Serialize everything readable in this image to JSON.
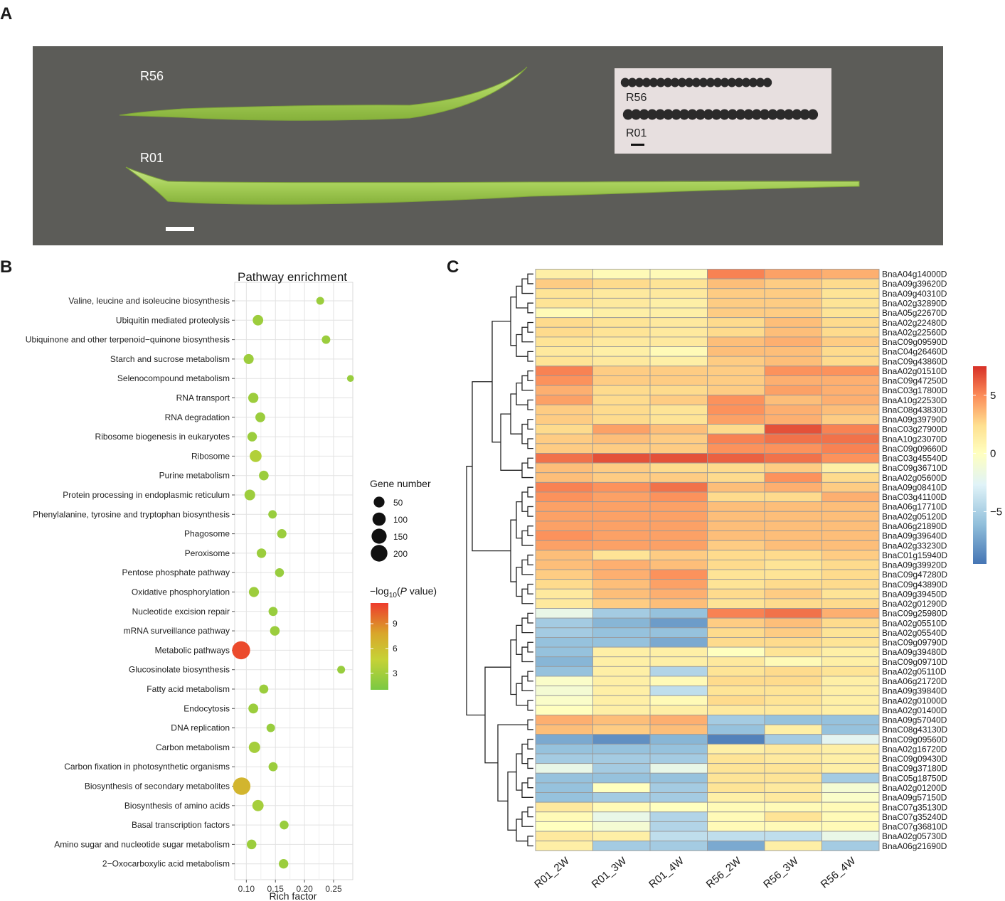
{
  "panels": {
    "a": "A",
    "b": "B",
    "c": "C"
  },
  "photo": {
    "pod_labels": [
      "R56",
      "R01"
    ],
    "inset_labels": [
      "R56",
      "R01"
    ],
    "colors": {
      "background": "#5c5c58",
      "pod": "#a6cf58",
      "inset_bg": "#e7dfdf",
      "seed": "#2b2a2a"
    }
  },
  "chart_data": [
    {
      "type": "scatter",
      "title": "Pathway enrichment",
      "xlabel": "Rich factor",
      "ylabel": "",
      "xlim": [
        0.08,
        0.283
      ],
      "xticks": [
        0.1,
        0.15,
        0.2,
        0.25
      ],
      "xtick_labels": [
        "0.10",
        "0.15",
        "0.20",
        "0.25"
      ],
      "categories": [
        "Valine, leucine and isoleucine biosynthesis",
        "Ubiquitin mediated proteolysis",
        "Ubiquinone and other terpenoid−quinone biosynthesis",
        "Starch and sucrose metabolism",
        "Selenocompound metabolism",
        "RNA transport",
        "RNA degradation",
        "Ribosome biogenesis in eukaryotes",
        "Ribosome",
        "Purine metabolism",
        "Protein processing in endoplasmic reticulum",
        "Phenylalanine, tyrosine and tryptophan biosynthesis",
        "Phagosome",
        "Peroxisome",
        "Pentose phosphate pathway",
        "Oxidative phosphorylation",
        "Nucleotide excision repair",
        "mRNA surveillance pathway",
        "Metabolic pathways",
        "Glucosinolate biosynthesis",
        "Fatty acid metabolism",
        "Endocytosis",
        "DNA replication",
        "Carbon metabolism",
        "Carbon fixation in photosynthetic organisms",
        "Biosynthesis of secondary metabolites",
        "Biosynthesis of amino acids",
        "Basal transcription factors",
        "Amino sugar and nucleotide sugar metabolism",
        "2−Oxocarboxylic acid metabolism"
      ],
      "rich_factor": [
        0.227,
        0.12,
        0.237,
        0.104,
        0.279,
        0.112,
        0.124,
        0.11,
        0.116,
        0.13,
        0.106,
        0.145,
        0.161,
        0.126,
        0.157,
        0.113,
        0.146,
        0.149,
        0.091,
        0.263,
        0.13,
        0.112,
        0.142,
        0.114,
        0.146,
        0.092,
        0.12,
        0.165,
        0.109,
        0.164
      ],
      "gene_number": [
        12,
        45,
        18,
        38,
        5,
        40,
        35,
        30,
        70,
        32,
        48,
        18,
        28,
        30,
        22,
        38,
        25,
        32,
        250,
        12,
        25,
        35,
        18,
        60,
        25,
        230,
        58,
        22,
        32,
        30
      ],
      "neg_log10_p": [
        2.5,
        2.6,
        2.5,
        2.6,
        2.4,
        2.6,
        2.5,
        2.5,
        3.6,
        2.5,
        2.6,
        2.4,
        2.5,
        2.5,
        2.4,
        2.6,
        2.4,
        2.5,
        11.0,
        2.4,
        2.5,
        2.5,
        2.4,
        3.0,
        2.5,
        6.8,
        3.0,
        2.4,
        2.5,
        2.5
      ],
      "size_legend": {
        "title": "Gene number",
        "values": [
          50,
          100,
          150,
          200
        ],
        "labels": [
          "50",
          "100",
          "150",
          "200"
        ]
      },
      "color_legend": {
        "title": "−log10(P value)",
        "ticks": [
          3,
          6,
          9
        ],
        "labels": [
          "3",
          "6",
          "9"
        ],
        "range": [
          1,
          11.5
        ],
        "colors": [
          "#7ac943",
          "#c6d236",
          "#d9a62a",
          "#ee3b2c"
        ]
      }
    },
    {
      "type": "heatmap",
      "columns": [
        "R01_2W",
        "R01_3W",
        "R01_4W",
        "R56_2W",
        "R56_3W",
        "R56_4W"
      ],
      "rows": [
        "BnaA04g14000D",
        "BnaA09g39620D",
        "BnaA09g40310D",
        "BnaA02g32890D",
        "BnaA05g22670D",
        "BnaA02g22480D",
        "BnaA02g22560D",
        "BnaC09g09590D",
        "BnaC04g26460D",
        "BnaC09g43860D",
        "BnaA02g01510D",
        "BnaC09g47250D",
        "BnaC03g17800D",
        "BnaA10g22530D",
        "BnaC08g43830D",
        "BnaA09g39790D",
        "BnaC03g27900D",
        "BnaA10g23070D",
        "BnaC09g09660D",
        "BnaC03g45540D",
        "BnaC09g36710D",
        "BnaA02g05600D",
        "BnaA09g08410D",
        "BnaC03g41100D",
        "BnaA06g17710D",
        "BnaA02g05120D",
        "BnaA06g21890D",
        "BnaA09g39640D",
        "BnaA02g33230D",
        "BnaC01g15940D",
        "BnaA09g39920D",
        "BnaC09g47280D",
        "BnaC09g43890D",
        "BnaA09g39450D",
        "BnaA02g01290D",
        "BnaC09g25980D",
        "BnaA02g05510D",
        "BnaA02g05540D",
        "BnaC09g09790D",
        "BnaA09g39480D",
        "BnaC09g09710D",
        "BnaA02g05110D",
        "BnaA06g21720D",
        "BnaA09g39840D",
        "BnaA02g01000D",
        "BnaA02g01400D",
        "BnaA09g57040D",
        "BnaC08g43130D",
        "BnaC09g09560D",
        "BnaA02g16720D",
        "BnaC09g09430D",
        "BnaC09g37180D",
        "BnaC05g18750D",
        "BnaA02g01200D",
        "BnaA09g57150D",
        "BnaC07g35130D",
        "BnaC07g35240D",
        "BnaC07g36810D",
        "BnaA02g05730D",
        "BnaA06g21690D"
      ],
      "values": [
        [
          0.5,
          -0.5,
          -0.5,
          5.0,
          4.0,
          3.5
        ],
        [
          2.5,
          2.0,
          1.5,
          3.0,
          2.5,
          2.0
        ],
        [
          1.5,
          1.0,
          1.0,
          2.5,
          2.5,
          1.5
        ],
        [
          1.5,
          1.0,
          0.5,
          2.5,
          2.5,
          1.5
        ],
        [
          -0.5,
          0.5,
          0.5,
          2.5,
          2.5,
          1.5
        ],
        [
          2.0,
          1.5,
          1.0,
          2.0,
          3.0,
          2.0
        ],
        [
          2.0,
          1.5,
          1.0,
          2.0,
          3.0,
          2.0
        ],
        [
          1.5,
          1.0,
          1.0,
          3.0,
          3.5,
          2.5
        ],
        [
          1.0,
          0.5,
          -0.5,
          3.0,
          3.0,
          2.0
        ],
        [
          1.5,
          1.0,
          0.5,
          2.5,
          3.0,
          2.0
        ],
        [
          5.0,
          2.5,
          2.5,
          2.5,
          4.5,
          4.5
        ],
        [
          4.5,
          2.5,
          2.5,
          2.5,
          3.5,
          3.5
        ],
        [
          3.5,
          2.0,
          2.0,
          2.5,
          4.0,
          3.5
        ],
        [
          4.0,
          2.0,
          2.5,
          4.5,
          3.0,
          3.5
        ],
        [
          2.5,
          2.0,
          1.5,
          4.5,
          3.5,
          3.0
        ],
        [
          2.5,
          2.0,
          1.5,
          4.0,
          3.5,
          2.5
        ],
        [
          2.0,
          4.0,
          3.0,
          2.0,
          6.5,
          5.0
        ],
        [
          2.5,
          3.0,
          2.5,
          5.0,
          5.5,
          5.5
        ],
        [
          2.5,
          2.5,
          2.5,
          4.5,
          4.5,
          5.0
        ],
        [
          5.5,
          6.5,
          6.5,
          6.0,
          5.5,
          4.5
        ],
        [
          3.0,
          2.5,
          2.0,
          2.0,
          2.5,
          0.5
        ],
        [
          3.0,
          2.5,
          2.5,
          2.0,
          4.5,
          2.0
        ],
        [
          5.0,
          4.5,
          5.5,
          3.0,
          3.5,
          2.5
        ],
        [
          4.5,
          4.0,
          4.5,
          2.0,
          2.0,
          3.5
        ],
        [
          4.0,
          4.0,
          4.0,
          3.0,
          3.0,
          3.0
        ],
        [
          4.0,
          4.0,
          4.0,
          3.0,
          3.0,
          3.0
        ],
        [
          4.0,
          4.0,
          4.0,
          3.0,
          3.0,
          3.0
        ],
        [
          4.5,
          4.0,
          4.0,
          3.0,
          3.0,
          3.0
        ],
        [
          4.0,
          4.0,
          4.0,
          2.5,
          3.0,
          3.0
        ],
        [
          3.0,
          1.5,
          2.5,
          2.0,
          2.0,
          2.5
        ],
        [
          3.0,
          3.5,
          3.0,
          2.0,
          1.5,
          2.0
        ],
        [
          2.5,
          3.5,
          4.5,
          1.5,
          1.5,
          2.0
        ],
        [
          2.0,
          3.0,
          4.0,
          1.5,
          2.0,
          2.0
        ],
        [
          1.0,
          3.0,
          3.5,
          2.0,
          2.5,
          1.5
        ],
        [
          1.0,
          2.5,
          3.0,
          1.5,
          2.0,
          2.0
        ],
        [
          -3.0,
          -6.0,
          -6.5,
          5.0,
          5.5,
          3.5
        ],
        [
          -6.0,
          -7.0,
          -8.0,
          2.5,
          3.0,
          2.0
        ],
        [
          -6.0,
          -6.5,
          -6.5,
          2.0,
          2.5,
          1.5
        ],
        [
          -6.5,
          -6.5,
          -7.5,
          2.0,
          2.0,
          1.5
        ],
        [
          -6.5,
          0.5,
          0.5,
          -1.0,
          1.5,
          0.5
        ],
        [
          -7.0,
          0.5,
          0.5,
          1.0,
          -0.5,
          0.5
        ],
        [
          -6.5,
          0.5,
          -5.5,
          1.5,
          2.0,
          1.5
        ],
        [
          -1.5,
          0.5,
          -0.5,
          2.0,
          2.0,
          0.5
        ],
        [
          -2.0,
          0.5,
          -5.0,
          1.5,
          1.5,
          0.5
        ],
        [
          -1.5,
          0.5,
          -0.5,
          2.0,
          1.5,
          0.5
        ],
        [
          -1.0,
          0.5,
          0.5,
          1.0,
          1.0,
          0.5
        ],
        [
          3.5,
          3.0,
          3.5,
          -6.0,
          -6.5,
          -6.5
        ],
        [
          3.0,
          2.5,
          3.0,
          -6.5,
          0.5,
          -6.5
        ],
        [
          -7.5,
          -8.5,
          -7.0,
          -9.0,
          -6.0,
          -3.5
        ],
        [
          -6.5,
          -6.5,
          -6.5,
          0.5,
          1.0,
          0.5
        ],
        [
          -6.0,
          -6.0,
          -6.0,
          1.5,
          1.0,
          0.5
        ],
        [
          -3.0,
          -6.0,
          -3.0,
          1.5,
          1.5,
          0.5
        ],
        [
          -6.5,
          -6.5,
          -6.5,
          1.5,
          1.5,
          -6.0
        ],
        [
          -6.5,
          -1.0,
          -6.0,
          1.5,
          1.0,
          -2.0
        ],
        [
          -6.5,
          -6.0,
          -6.0,
          0.5,
          1.0,
          -1.5
        ],
        [
          1.0,
          -0.5,
          -1.0,
          -0.5,
          -0.5,
          -0.5
        ],
        [
          -0.5,
          -3.0,
          -5.5,
          -0.5,
          1.5,
          -0.5
        ],
        [
          -1.0,
          -2.0,
          -5.5,
          -0.5,
          -0.5,
          -0.5
        ],
        [
          1.0,
          0.5,
          -5.0,
          -5.0,
          -5.0,
          -3.0
        ],
        [
          0.5,
          -6.0,
          -6.0,
          -7.5,
          0.5,
          -6.0
        ]
      ],
      "color_scale": {
        "min": -9.5,
        "max": 7.5,
        "colors": [
          "#4575b4",
          "#91bfdb",
          "#e0f3f8",
          "#ffffbf",
          "#fee090",
          "#fc8d59",
          "#d73027"
        ]
      },
      "colorbar_ticks": [
        5,
        0,
        -5
      ],
      "colorbar_labels": [
        "5",
        "0",
        "−5"
      ]
    }
  ]
}
